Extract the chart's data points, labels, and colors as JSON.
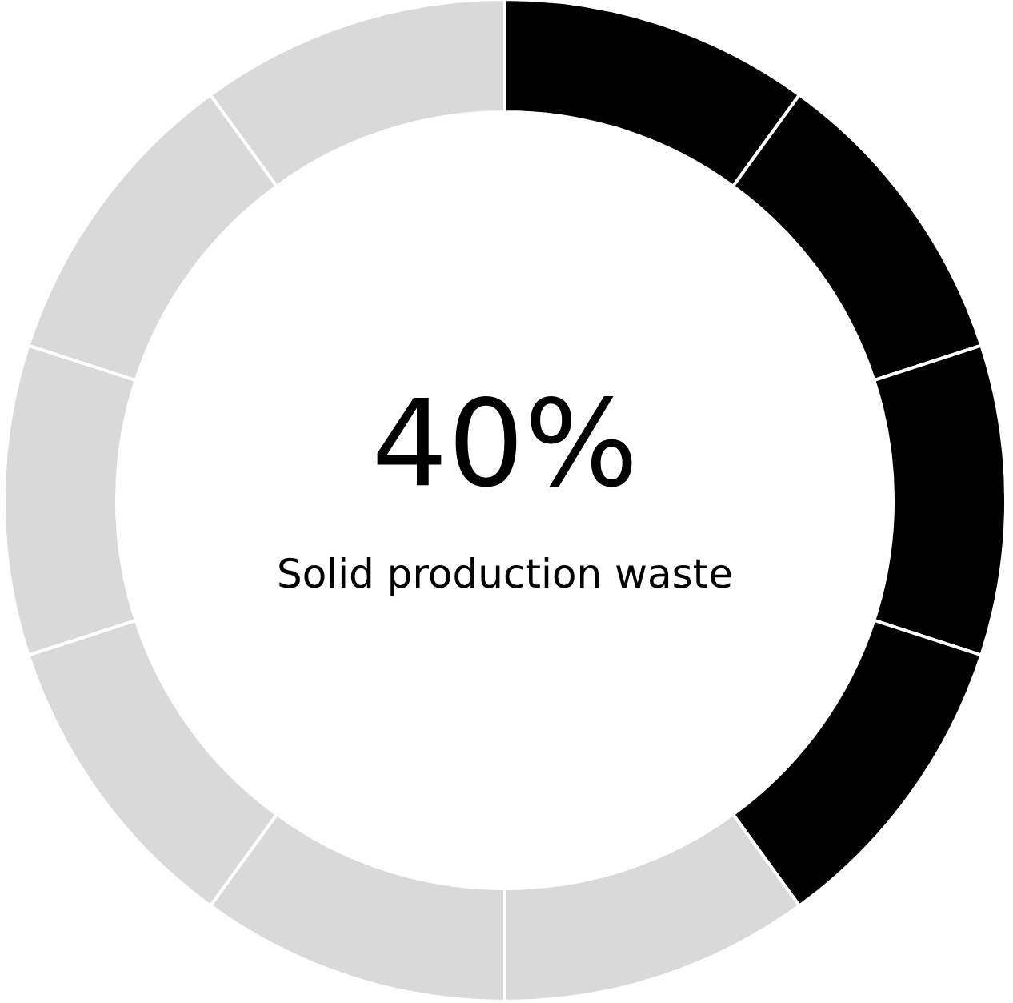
{
  "chart_data": {
    "type": "donut",
    "title": "40%",
    "annotations": [
      "Solid production waste"
    ],
    "categories": [
      null,
      null,
      null,
      null,
      null,
      null,
      null,
      null,
      null,
      null
    ],
    "values": [
      10,
      10,
      10,
      10,
      10,
      10,
      10,
      10,
      10,
      10
    ],
    "colors": [
      "#000000",
      "#000000",
      "#000000",
      "#000000",
      "#d9d9d9",
      "#d9d9d9",
      "#d9d9d9",
      "#d9d9d9",
      "#d9d9d9",
      "#d9d9d9"
    ],
    "legend": false
  }
}
